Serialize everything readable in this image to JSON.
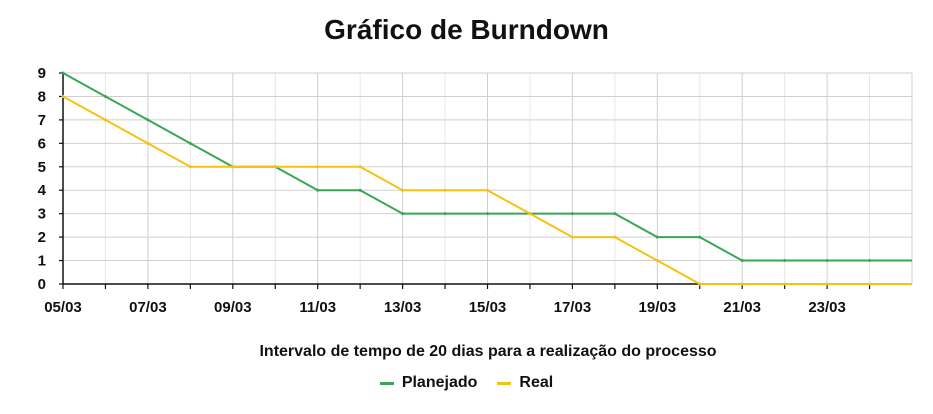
{
  "chart_data": {
    "type": "line",
    "title": "Gráfico de Burndown",
    "xlabel": "Intervalo de tempo de 20 dias para a realização do processo",
    "ylabel": "",
    "x": [
      "05/03",
      "06/03",
      "07/03",
      "08/03",
      "09/03",
      "10/03",
      "11/03",
      "12/03",
      "13/03",
      "14/03",
      "15/03",
      "16/03",
      "17/03",
      "18/03",
      "19/03",
      "20/03",
      "21/03",
      "22/03",
      "23/03",
      "24/03"
    ],
    "x_tick_labels": [
      "05/03",
      "07/03",
      "09/03",
      "11/03",
      "13/03",
      "15/03",
      "17/03",
      "19/03",
      "21/03",
      "23/03"
    ],
    "y_ticks": [
      "0",
      "1",
      "2",
      "3",
      "4",
      "5",
      "6",
      "7",
      "8",
      "9"
    ],
    "ylim": [
      0,
      9
    ],
    "grid": true,
    "legend_position": "bottom",
    "series": [
      {
        "name": "Planejado",
        "color": "#3aa655",
        "values": [
          9,
          8,
          7,
          6,
          5,
          5,
          4,
          4,
          3,
          3,
          3,
          3,
          3,
          3,
          2,
          2,
          1,
          1,
          1,
          1
        ]
      },
      {
        "name": "Real",
        "color": "#f5c211",
        "values": [
          8,
          7,
          6,
          5,
          5,
          5,
          5,
          5,
          4,
          4,
          4,
          3,
          2,
          2,
          1,
          0,
          0,
          0,
          0,
          0
        ]
      }
    ]
  }
}
